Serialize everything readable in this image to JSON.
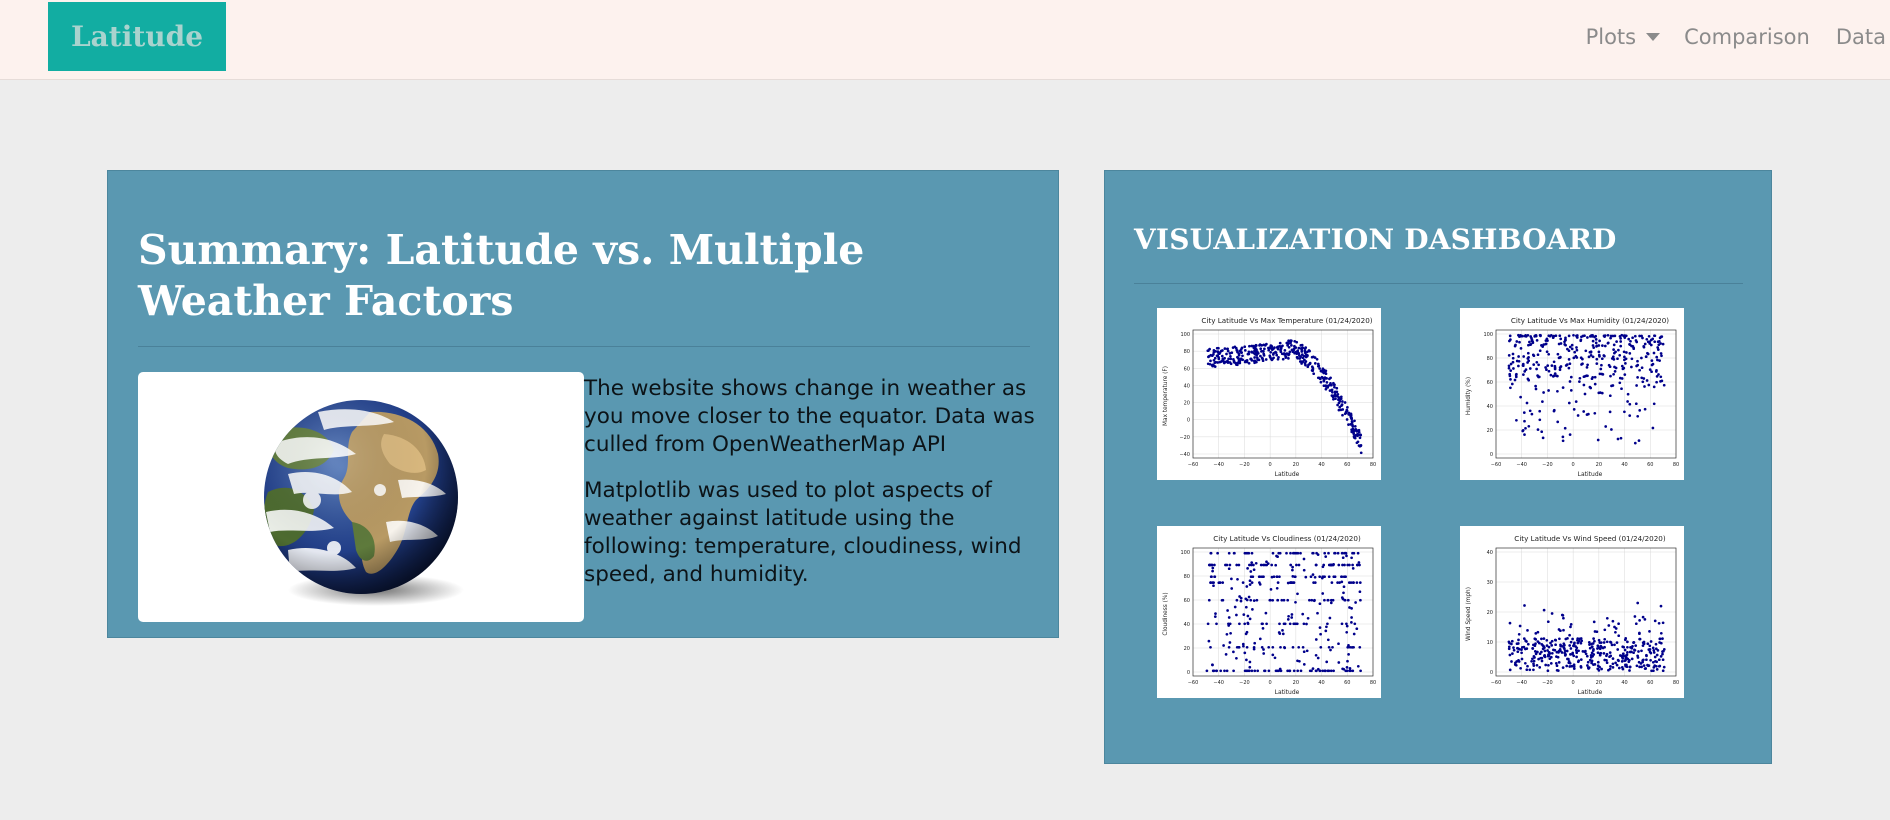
{
  "navbar": {
    "brand": "Latitude",
    "items": [
      {
        "label": "Plots"
      },
      {
        "label": "Comparison"
      },
      {
        "label": "Data"
      }
    ]
  },
  "summary": {
    "title": "Summary: Latitude vs. Multiple Weather Factors",
    "paragraphs": [
      "The website shows change in weather as you move closer to the equator. Data was culled from OpenWeatherMap API",
      "Matplotlib was used to plot aspects of weather against latitude using the following: temperature, cloudiness, wind speed, and humidity."
    ],
    "image_icon": "earth-globe"
  },
  "dashboard": {
    "title": "VISUALIZATION DASHBOARD",
    "plots": [
      {
        "title": "City Latitude Vs Max Temperature (01/24/2020)",
        "ylabel": "Max temperature (F)",
        "xlabel": "Latitude",
        "yticks": [
          "100",
          "80",
          "60",
          "40",
          "20",
          "0",
          "−20",
          "−40"
        ],
        "xticks": [
          "−60",
          "−40",
          "−20",
          "0",
          "20",
          "40",
          "60",
          "80"
        ]
      },
      {
        "title": "City Latitude Vs Max Humidity (01/24/2020)",
        "ylabel": "Humidity (%)",
        "xlabel": "Latitude",
        "yticks": [
          "100",
          "80",
          "60",
          "40",
          "20",
          "0"
        ],
        "xticks": [
          "−60",
          "−40",
          "−20",
          "0",
          "20",
          "40",
          "60",
          "80"
        ]
      },
      {
        "title": "City Latitude Vs Cloudiness (01/24/2020)",
        "ylabel": "Cloudiness (%)",
        "xlabel": "Latitude",
        "yticks": [
          "100",
          "80",
          "60",
          "40",
          "20",
          "0"
        ],
        "xticks": [
          "−60",
          "−40",
          "−20",
          "0",
          "20",
          "40",
          "60",
          "80"
        ]
      },
      {
        "title": "City Latitude Vs Wind Speed (01/24/2020)",
        "ylabel": "Wind Speed (mph)",
        "xlabel": "Latitude",
        "yticks": [
          "40",
          "30",
          "20",
          "10",
          "0"
        ],
        "xticks": [
          "−60",
          "−40",
          "−20",
          "0",
          "20",
          "40",
          "60",
          "80"
        ]
      }
    ]
  },
  "colors": {
    "brand_bg": "#12ada2",
    "panel_bg": "#5a98b1",
    "page_bg": "#ededed",
    "navbar_bg": "#fdf2ee",
    "scatter_dot": "#00008b"
  }
}
